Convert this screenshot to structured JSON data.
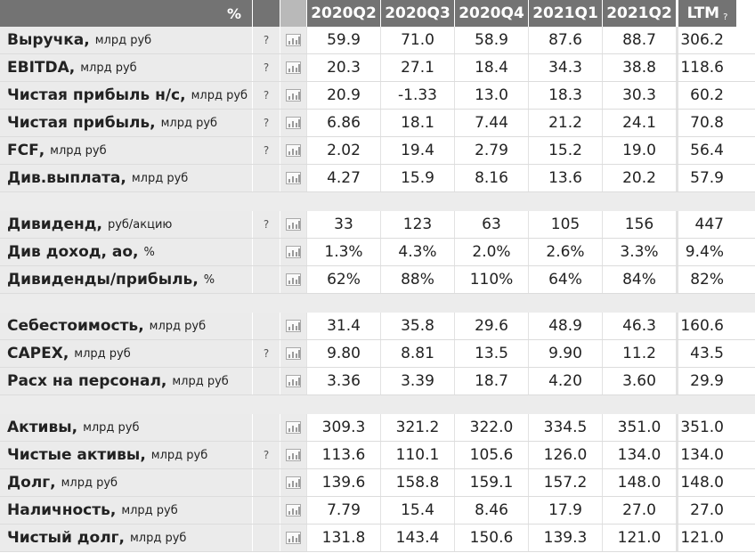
{
  "header": {
    "pct": "%",
    "periods": [
      "2020Q2",
      "2020Q3",
      "2020Q4",
      "2021Q1",
      "2021Q2"
    ],
    "ltm": "LTM",
    "ltm_help": "?"
  },
  "groups": [
    [
      {
        "name": "Выручка",
        "unit": "млрд руб",
        "help": "?",
        "values": [
          "59.9",
          "71.0",
          "58.9",
          "87.6",
          "88.7"
        ],
        "ltm": "306.2"
      },
      {
        "name": "EBITDA",
        "unit": "млрд руб",
        "help": "?",
        "values": [
          "20.3",
          "27.1",
          "18.4",
          "34.3",
          "38.8"
        ],
        "ltm": "118.6"
      },
      {
        "name": "Чистая прибыль н/с",
        "unit": "млрд руб",
        "help": "?",
        "values": [
          "20.9",
          "-1.33",
          "13.0",
          "18.3",
          "30.3"
        ],
        "ltm": "60.2"
      },
      {
        "name": "Чистая прибыль",
        "unit": "млрд руб",
        "help": "?",
        "values": [
          "6.86",
          "18.1",
          "7.44",
          "21.2",
          "24.1"
        ],
        "ltm": "70.8"
      },
      {
        "name": "FCF",
        "unit": "млрд руб",
        "help": "?",
        "values": [
          "2.02",
          "19.4",
          "2.79",
          "15.2",
          "19.0"
        ],
        "ltm": "56.4"
      },
      {
        "name": "Див.выплата",
        "unit": "млрд руб",
        "help": "",
        "values": [
          "4.27",
          "15.9",
          "8.16",
          "13.6",
          "20.2"
        ],
        "ltm": "57.9"
      }
    ],
    [
      {
        "name": "Дивиденд",
        "unit": "руб/акцию",
        "help": "?",
        "values": [
          "33",
          "123",
          "63",
          "105",
          "156"
        ],
        "ltm": "447"
      },
      {
        "name": "Див доход, ао",
        "unit": "%",
        "help": "",
        "values": [
          "1.3%",
          "4.3%",
          "2.0%",
          "2.6%",
          "3.3%"
        ],
        "ltm": "9.4%"
      },
      {
        "name": "Дивиденды/прибыль",
        "unit": "%",
        "help": "",
        "values": [
          "62%",
          "88%",
          "110%",
          "64%",
          "84%"
        ],
        "ltm": "82%"
      }
    ],
    [
      {
        "name": "Себестоимость",
        "unit": "млрд руб",
        "help": "",
        "values": [
          "31.4",
          "35.8",
          "29.6",
          "48.9",
          "46.3"
        ],
        "ltm": "160.6"
      },
      {
        "name": "CAPEX",
        "unit": "млрд руб",
        "help": "?",
        "values": [
          "9.80",
          "8.81",
          "13.5",
          "9.90",
          "11.2"
        ],
        "ltm": "43.5"
      },
      {
        "name": "Расх на персонал",
        "unit": "млрд руб",
        "help": "",
        "values": [
          "3.36",
          "3.39",
          "18.7",
          "4.20",
          "3.60"
        ],
        "ltm": "29.9"
      }
    ],
    [
      {
        "name": "Активы",
        "unit": "млрд руб",
        "help": "",
        "values": [
          "309.3",
          "321.2",
          "322.0",
          "334.5",
          "351.0"
        ],
        "ltm": "351.0"
      },
      {
        "name": "Чистые активы",
        "unit": "млрд руб",
        "help": "?",
        "values": [
          "113.6",
          "110.1",
          "105.6",
          "126.0",
          "134.0"
        ],
        "ltm": "134.0"
      },
      {
        "name": "Долг",
        "unit": "млрд руб",
        "help": "",
        "values": [
          "139.6",
          "158.8",
          "159.1",
          "157.2",
          "148.0"
        ],
        "ltm": "148.0"
      },
      {
        "name": "Наличность",
        "unit": "млрд руб",
        "help": "",
        "values": [
          "7.79",
          "15.4",
          "8.46",
          "17.9",
          "27.0"
        ],
        "ltm": "27.0"
      },
      {
        "name": "Чистый долг",
        "unit": "млрд руб",
        "help": "",
        "values": [
          "131.8",
          "143.4",
          "150.6",
          "139.3",
          "121.0"
        ],
        "ltm": "121.0"
      }
    ]
  ]
}
